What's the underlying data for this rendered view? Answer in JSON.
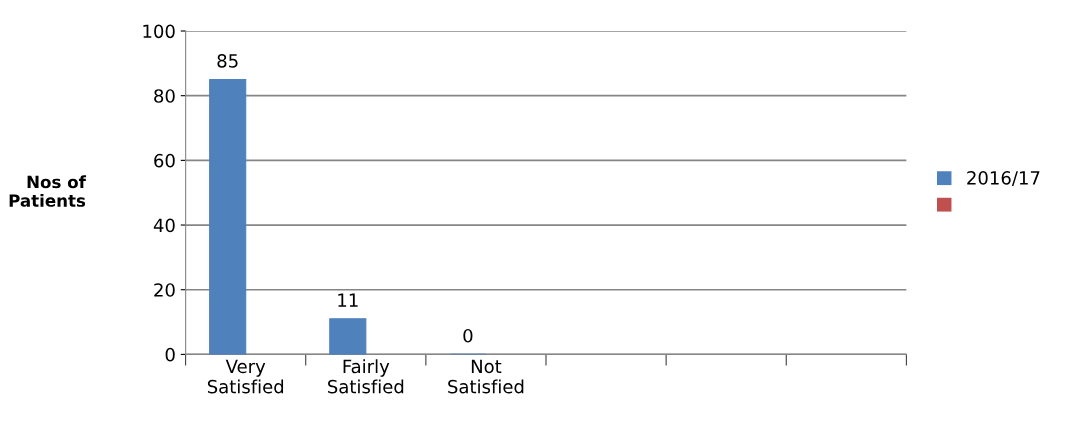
{
  "chart_data": {
    "type": "bar",
    "categories": [
      "Very\nSatisfied",
      "Fairly\nSatisfied",
      "Not\nSatisfied",
      null,
      null,
      null
    ],
    "series": [
      {
        "name": "2016/17",
        "color": "#4f81bd",
        "values": [
          85,
          11,
          0,
          null,
          null,
          null
        ]
      },
      {
        "color": "#c0504d",
        "values": [
          null,
          null,
          null,
          null,
          null,
          null
        ]
      }
    ],
    "ylabel": "Nos of\nPatients",
    "ylim": [
      0,
      100
    ],
    "yticks": [
      0,
      20,
      40,
      60,
      80,
      100
    ],
    "grid": "y",
    "legend": "right",
    "data_labels": true
  }
}
